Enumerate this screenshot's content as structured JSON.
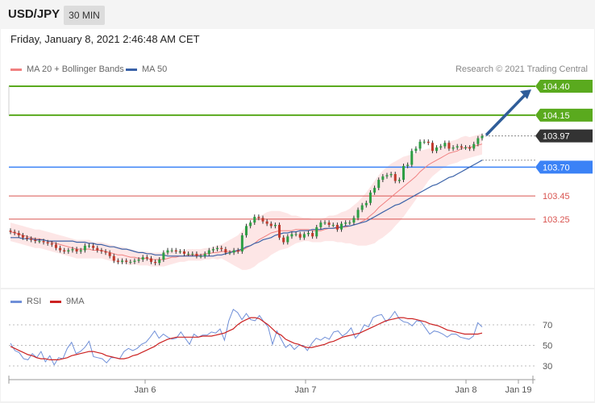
{
  "header": {
    "symbol": "USD/JPY",
    "timeframe": "30 MIN"
  },
  "datetime": "Friday, January 8, 2021 2:46:48 AM CET",
  "credit": "Research © 2021 Trading Central",
  "colors": {
    "ma20": "#f08080",
    "bands": "#fde2e2",
    "ma50": "#3a62a8",
    "resistance": "#5aaa1e",
    "support": "#3b82f6",
    "pivot_red": "#d9534f",
    "current": "#333333",
    "rsi": "#6f8fd8",
    "rsi_ma": "#cc2222",
    "up_candle": "#2e9e44",
    "down_candle": "#c0392b",
    "arrow": "#2f5d99"
  },
  "chart_data": [
    {
      "type": "candlestick",
      "title": "",
      "legend": [
        {
          "label": "MA 20 + Bollinger Bands",
          "color": "#f08080"
        },
        {
          "label": "MA 50",
          "color": "#3a62a8"
        }
      ],
      "legend_position": "top-left",
      "ylim": [
        102.7,
        104.5
      ],
      "x_ticks": [
        "Jan 6",
        "Jan 7",
        "Jan 8",
        "Jan 19"
      ],
      "levels": [
        {
          "label": "104.40",
          "value": 104.4,
          "kind": "resistance"
        },
        {
          "label": "104.15",
          "value": 104.15,
          "kind": "resistance"
        },
        {
          "label": "103.97",
          "value": 103.97,
          "kind": "current"
        },
        {
          "label": "103.70",
          "value": 103.7,
          "kind": "support"
        },
        {
          "label": "103.45",
          "value": 103.45,
          "kind": "pivot"
        },
        {
          "label": "103.25",
          "value": 103.25,
          "kind": "pivot"
        }
      ],
      "target_arrow": {
        "from": 103.97,
        "to": 104.4
      },
      "close": [
        103.14,
        103.13,
        103.11,
        103.09,
        103.08,
        103.07,
        103.06,
        103.06,
        103.05,
        103.04,
        103.03,
        103.0,
        102.98,
        102.97,
        102.98,
        102.99,
        102.97,
        102.98,
        103.02,
        103.02,
        103.0,
        102.98,
        102.97,
        102.96,
        102.93,
        102.89,
        102.88,
        102.89,
        102.88,
        102.88,
        102.89,
        102.9,
        102.92,
        102.91,
        102.88,
        102.87,
        102.9,
        102.96,
        102.98,
        102.98,
        102.97,
        102.97,
        102.95,
        102.95,
        102.95,
        102.93,
        102.93,
        102.95,
        102.98,
        102.99,
        103.0,
        102.99,
        102.96,
        102.96,
        102.98,
        102.97,
        103.11,
        103.19,
        103.22,
        103.27,
        103.26,
        103.23,
        103.21,
        103.19,
        103.2,
        103.09,
        103.05,
        103.1,
        103.12,
        103.12,
        103.09,
        103.12,
        103.13,
        103.1,
        103.18,
        103.22,
        103.22,
        103.2,
        103.2,
        103.16,
        103.21,
        103.22,
        103.22,
        103.26,
        103.33,
        103.37,
        103.39,
        103.48,
        103.52,
        103.59,
        103.62,
        103.63,
        103.64,
        103.58,
        103.59,
        103.71,
        103.72,
        103.84,
        103.86,
        103.92,
        103.92,
        103.91,
        103.84,
        103.87,
        103.88,
        103.91,
        103.86,
        103.87,
        103.88,
        103.87,
        103.87,
        103.86,
        103.9,
        103.95,
        103.97
      ],
      "ma20": [
        103.14,
        103.13,
        103.12,
        103.11,
        103.1,
        103.09,
        103.08,
        103.08,
        103.07,
        103.06,
        103.05,
        103.04,
        103.03,
        103.02,
        103.01,
        103.0,
        102.99,
        102.99,
        102.99,
        102.99,
        102.98,
        102.98,
        102.98,
        102.97,
        102.96,
        102.95,
        102.94,
        102.94,
        102.93,
        102.92,
        102.92,
        102.91,
        102.91,
        102.91,
        102.9,
        102.9,
        102.9,
        102.9,
        102.91,
        102.92,
        102.92,
        102.93,
        102.93,
        102.94,
        102.94,
        102.94,
        102.94,
        102.95,
        102.95,
        102.96,
        102.96,
        102.97,
        102.97,
        102.97,
        102.97,
        102.97,
        102.98,
        103.0,
        103.02,
        103.04,
        103.07,
        103.09,
        103.11,
        103.13,
        103.14,
        103.15,
        103.15,
        103.15,
        103.15,
        103.16,
        103.16,
        103.16,
        103.16,
        103.15,
        103.15,
        103.15,
        103.16,
        103.17,
        103.17,
        103.17,
        103.18,
        103.18,
        103.19,
        103.2,
        103.21,
        103.23,
        103.25,
        103.28,
        103.31,
        103.35,
        103.38,
        103.41,
        103.44,
        103.47,
        103.5,
        103.53,
        103.56,
        103.59,
        103.62,
        103.66,
        103.69,
        103.72,
        103.74,
        103.76,
        103.78,
        103.8,
        103.82,
        103.83,
        103.84,
        103.86,
        103.87,
        103.87,
        103.88,
        103.89,
        103.9
      ],
      "bb_width": [
        0.08,
        0.08,
        0.08,
        0.08,
        0.08,
        0.08,
        0.08,
        0.08,
        0.08,
        0.08,
        0.08,
        0.08,
        0.08,
        0.08,
        0.08,
        0.08,
        0.08,
        0.08,
        0.08,
        0.08,
        0.07,
        0.07,
        0.07,
        0.07,
        0.07,
        0.07,
        0.07,
        0.07,
        0.07,
        0.07,
        0.06,
        0.06,
        0.06,
        0.06,
        0.06,
        0.06,
        0.06,
        0.06,
        0.06,
        0.06,
        0.05,
        0.05,
        0.05,
        0.05,
        0.05,
        0.05,
        0.05,
        0.05,
        0.05,
        0.05,
        0.06,
        0.06,
        0.08,
        0.1,
        0.12,
        0.14,
        0.17,
        0.19,
        0.2,
        0.2,
        0.2,
        0.2,
        0.2,
        0.19,
        0.18,
        0.17,
        0.16,
        0.15,
        0.13,
        0.12,
        0.11,
        0.1,
        0.1,
        0.1,
        0.1,
        0.1,
        0.1,
        0.11,
        0.11,
        0.12,
        0.13,
        0.14,
        0.15,
        0.17,
        0.19,
        0.21,
        0.23,
        0.25,
        0.27,
        0.28,
        0.29,
        0.29,
        0.29,
        0.28,
        0.27,
        0.26,
        0.24,
        0.22,
        0.2,
        0.18,
        0.16,
        0.14,
        0.12,
        0.11,
        0.1,
        0.1,
        0.1,
        0.1,
        0.1,
        0.1,
        0.1,
        0.09,
        0.09,
        0.09,
        0.09
      ],
      "ma50": [
        103.09,
        103.09,
        103.09,
        103.08,
        103.08,
        103.08,
        103.07,
        103.07,
        103.07,
        103.06,
        103.06,
        103.06,
        103.06,
        103.06,
        103.06,
        103.06,
        103.05,
        103.05,
        103.05,
        103.04,
        103.04,
        103.03,
        103.03,
        103.02,
        103.01,
        103.01,
        103.0,
        102.99,
        102.99,
        102.98,
        102.97,
        102.96,
        102.96,
        102.95,
        102.95,
        102.94,
        102.94,
        102.94,
        102.93,
        102.93,
        102.93,
        102.93,
        102.93,
        102.93,
        102.93,
        102.93,
        102.93,
        102.93,
        102.93,
        102.93,
        102.94,
        102.94,
        102.95,
        102.96,
        102.97,
        102.98,
        102.99,
        103.01,
        103.02,
        103.04,
        103.05,
        103.07,
        103.08,
        103.09,
        103.11,
        103.12,
        103.13,
        103.13,
        103.14,
        103.14,
        103.15,
        103.15,
        103.15,
        103.16,
        103.16,
        103.16,
        103.17,
        103.17,
        103.17,
        103.18,
        103.18,
        103.19,
        103.19,
        103.2,
        103.21,
        103.22,
        103.23,
        103.25,
        103.27,
        103.29,
        103.31,
        103.33,
        103.35,
        103.37,
        103.38,
        103.4,
        103.42,
        103.44,
        103.46,
        103.48,
        103.5,
        103.52,
        103.54,
        103.55,
        103.57,
        103.59,
        103.61,
        103.62,
        103.64,
        103.66,
        103.68,
        103.7,
        103.72,
        103.74,
        103.76
      ]
    },
    {
      "type": "line",
      "title": "",
      "legend": [
        {
          "label": "RSI",
          "color": "#6f8fd8"
        },
        {
          "label": "9MA",
          "color": "#cc2222"
        }
      ],
      "legend_position": "top-left",
      "ylim": [
        20,
        80
      ],
      "y_ticks": [
        "70",
        "50",
        "30"
      ],
      "series": [
        {
          "name": "RSI",
          "values": [
            52,
            45,
            43,
            37,
            36,
            42,
            38,
            44,
            34,
            40,
            31,
            38,
            37,
            47,
            53,
            42,
            44,
            48,
            54,
            39,
            38,
            37,
            33,
            38,
            38,
            37,
            44,
            47,
            45,
            47,
            51,
            53,
            58,
            64,
            57,
            61,
            58,
            56,
            57,
            63,
            57,
            51,
            61,
            58,
            60,
            60,
            63,
            62,
            66,
            55,
            74,
            85,
            82,
            75,
            81,
            75,
            74,
            79,
            73,
            68,
            51,
            64,
            56,
            48,
            51,
            46,
            50,
            50,
            45,
            52,
            57,
            55,
            58,
            56,
            63,
            64,
            59,
            62,
            67,
            57,
            62,
            70,
            68,
            77,
            79,
            80,
            73,
            77,
            83,
            76,
            73,
            72,
            69,
            74,
            73,
            67,
            61,
            64,
            63,
            61,
            58,
            61,
            61,
            58,
            57,
            56,
            59,
            72,
            68
          ]
        },
        {
          "name": "9MA",
          "values": [
            49,
            47,
            45,
            43,
            41,
            40,
            38,
            37,
            37,
            36,
            36,
            36,
            37,
            38,
            40,
            41,
            42,
            43,
            44,
            44,
            43,
            42,
            40,
            39,
            38,
            37,
            37,
            38,
            40,
            41,
            43,
            45,
            47,
            49,
            52,
            54,
            56,
            57,
            58,
            58,
            58,
            58,
            58,
            58,
            59,
            59,
            59,
            60,
            61,
            62,
            64,
            66,
            70,
            73,
            75,
            77,
            77,
            76,
            73,
            70,
            66,
            62,
            60,
            56,
            54,
            52,
            51,
            49,
            48,
            48,
            49,
            50,
            51,
            53,
            54,
            56,
            58,
            59,
            60,
            61,
            62,
            64,
            66,
            68,
            70,
            72,
            74,
            75,
            76,
            77,
            77,
            76,
            76,
            75,
            74,
            73,
            71,
            70,
            69,
            67,
            65,
            64,
            63,
            62,
            61,
            61,
            61,
            61,
            62
          ]
        }
      ]
    }
  ]
}
